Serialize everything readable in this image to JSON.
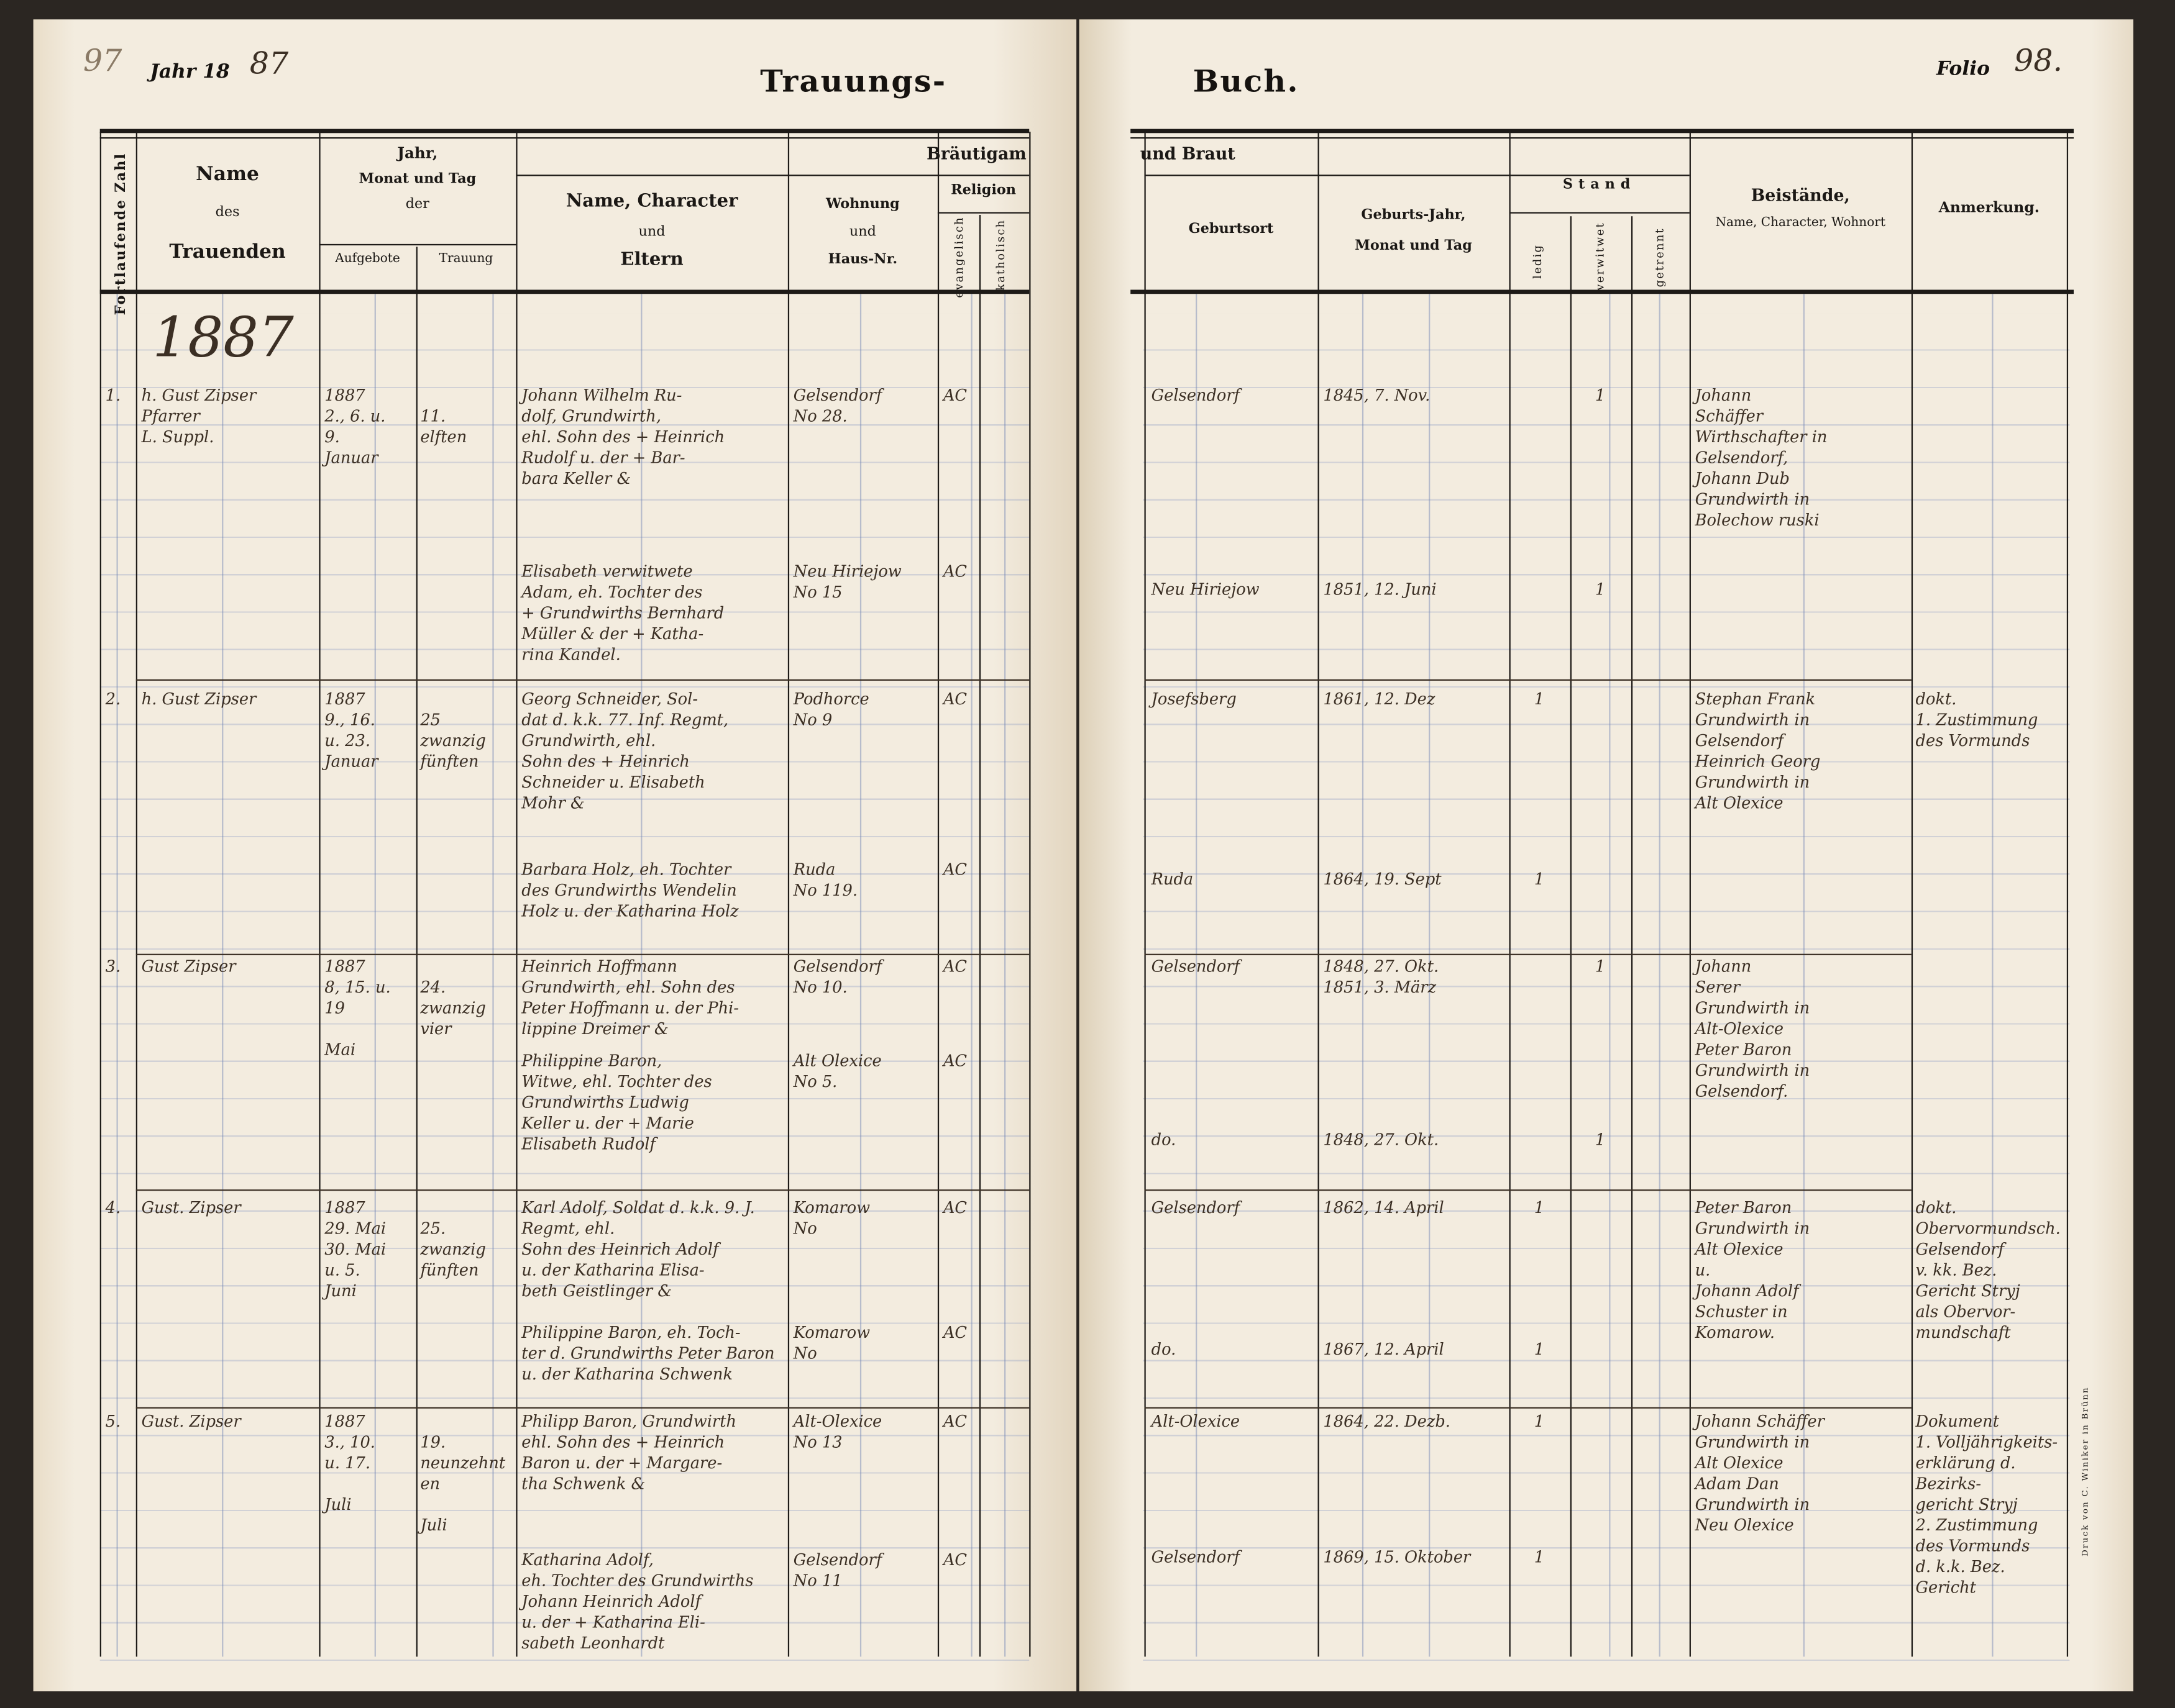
{
  "header": {
    "margin_note": "97",
    "year_label": "Jahr 18",
    "year_handwritten": "87",
    "title_left": "Trauungs-",
    "title_right": "Buch.",
    "folio_label": "Folio",
    "folio_number": "98.",
    "printer": "Druck von C. Winiker in Brünn"
  },
  "columns": {
    "number": "Fortlaufende Zahl",
    "name_top": "Name",
    "name_mid": "des",
    "name_bottom": "Trauenden",
    "date_top": "Jahr,",
    "date_mid": "Monat und Tag",
    "date_der": "der",
    "banns": "Aufgebote",
    "wedding": "Trauung",
    "groom_section": "Bräutigam",
    "bride_section": "und Braut",
    "person_top": "Name, Character",
    "person_mid": "und",
    "person_bottom": "Eltern",
    "residence_top": "Wohnung",
    "residence_mid": "und",
    "residence_bottom": "Haus-Nr.",
    "religion": "Religion",
    "evangelical": "evangelisch",
    "catholic": "katholisch",
    "birthplace": "Geburtsort",
    "birth_top": "Geburts-Jahr,",
    "birth_bottom": "Monat und Tag",
    "status": "Stand",
    "single": "ledig",
    "widowed": "verwitwet",
    "separated": "getrennt",
    "witnesses_top": "Beistände,",
    "witnesses_bottom": "Name, Character, Wohnort",
    "remarks": "Anmerkung."
  },
  "year_entry": "1887",
  "entries": [
    {
      "number": "1.",
      "officiant": "h. Gust Zipser\nPfarrer\nL. Suppl.",
      "banns": "1887\n2., 6. u.\n9.\nJanuar",
      "wedding": "\n11.\nelften",
      "groom": "Johann Wilhelm Ru-\ndolf, Grundwirth,\nehl. Sohn des + Heinrich\nRudolf u. der + Bar-\nbara Keller &",
      "bride": "Elisabeth verwitwete\nAdam, eh. Tochter des\n+ Grundwirths Bernhard\nMüller & der + Katha-\nrina Kandel.",
      "groom_residence": "Gelsendorf\nNo 28.",
      "bride_residence": "Neu Hiriejow\nNo 15",
      "groom_religion": "AC",
      "bride_religion": "AC",
      "groom_birthplace": "Gelsendorf",
      "groom_birth": "1845, 7. Nov.",
      "groom_status": {
        "single": "",
        "widowed": "1",
        "separated": ""
      },
      "bride_birthplace": "Neu Hiriejow",
      "bride_birth": "1851, 12. Juni",
      "bride_status": {
        "single": "",
        "widowed": "1",
        "separated": ""
      },
      "witnesses": "Johann\nSchäffer\nWirthschafter in\nGelsendorf,\nJohann Dub\nGrundwirth in\nBolechow ruski",
      "remarks": ""
    },
    {
      "number": "2.",
      "officiant": "h. Gust Zipser",
      "banns": "1887\n9., 16.\nu. 23.\nJanuar",
      "wedding": "\n25\nzwanzig\nfünften",
      "groom": "Georg Schneider, Sol-\ndat d. k.k. 77. Inf. Regmt,\nGrundwirth, ehl.\nSohn des + Heinrich\nSchneider u. Elisabeth\nMohr &",
      "bride": "Barbara Holz, eh. Tochter\ndes Grundwirths Wendelin\nHolz u. der Katharina Holz",
      "groom_residence": "Podhorce\nNo 9",
      "bride_residence": "Ruda\nNo 119.",
      "groom_religion": "AC",
      "bride_religion": "AC",
      "groom_birthplace": "Josefsberg",
      "groom_birth": "1861, 12. Dez",
      "groom_status": {
        "single": "1",
        "widowed": "",
        "separated": ""
      },
      "bride_birthplace": "Ruda",
      "bride_birth": "1864, 19. Sept",
      "bride_status": {
        "single": "1",
        "widowed": "",
        "separated": ""
      },
      "witnesses": "Stephan Frank\nGrundwirth in\nGelsendorf\nHeinrich Georg\nGrundwirth in\nAlt Olexice",
      "remarks": "dokt.\n1. Zustimmung\ndes Vormunds"
    },
    {
      "number": "3.",
      "officiant": "Gust Zipser",
      "banns": "1887\n8, 15. u.\n19\n\nMai",
      "wedding": "\n24.\nzwanzig\nvier",
      "groom": "Heinrich Hoffmann\nGrundwirth, ehl. Sohn des\nPeter Hoffmann u. der Phi-\nlippine Dreimer &",
      "bride": "Philippine Baron,\nWitwe, ehl. Tochter des\nGrundwirths Ludwig\nKeller u. der + Marie\nElisabeth Rudolf",
      "groom_residence": "Gelsendorf\nNo 10.",
      "bride_residence": "Alt Olexice\nNo 5.",
      "groom_religion": "AC",
      "bride_religion": "AC",
      "groom_birthplace": "Gelsendorf",
      "groom_birth": "1848, 27. Okt.\n1851, 3. März",
      "groom_status": {
        "single": "",
        "widowed": "1",
        "separated": ""
      },
      "bride_birthplace": "do.",
      "bride_birth": "1848, 27. Okt.",
      "bride_status": {
        "single": "",
        "widowed": "1",
        "separated": ""
      },
      "witnesses": "Johann\nSerer\nGrundwirth in\nAlt-Olexice\nPeter Baron\nGrundwirth in\nGelsendorf.",
      "remarks": ""
    },
    {
      "number": "4.",
      "officiant": "Gust. Zipser",
      "banns": "1887\n29. Mai\n30. Mai\nu. 5.\nJuni",
      "wedding": "\n25.\nzwanzig\nfünften",
      "groom": "Karl Adolf, Soldat d. k.k. 9. J. Regmt, ehl.\nSohn des Heinrich Adolf\nu. der Katharina Elisa-\nbeth Geistlinger &",
      "bride": "Philippine Baron, eh. Toch-\nter d. Grundwirths Peter Baron\nu. der Katharina Schwenk",
      "groom_residence": "Komarow\nNo",
      "bride_residence": "Komarow\nNo",
      "groom_religion": "AC",
      "bride_religion": "AC",
      "groom_birthplace": "Gelsendorf",
      "groom_birth": "1862, 14. April",
      "groom_status": {
        "single": "1",
        "widowed": "",
        "separated": ""
      },
      "bride_birthplace": "do.",
      "bride_birth": "1867, 12. April",
      "bride_status": {
        "single": "1",
        "widowed": "",
        "separated": ""
      },
      "witnesses": "Peter Baron\nGrundwirth in\nAlt Olexice\nu.\nJohann Adolf\nSchuster in\nKomarow.",
      "remarks": "dokt.\nObervormundsch.\nGelsendorf\nv. kk. Bez.\nGericht Stryj\nals Obervor-\nmundschaft"
    },
    {
      "number": "5.",
      "officiant": "Gust. Zipser",
      "banns": "1887\n3., 10.\nu. 17.\n\nJuli",
      "wedding": "\n19.\nneunzehnten\n\nJuli",
      "groom": "Philipp Baron, Grundwirth\nehl. Sohn des + Heinrich\nBaron u. der + Margare-\ntha Schwenk &",
      "bride": "Katharina Adolf,\neh. Tochter des Grundwirths\nJohann Heinrich Adolf\nu. der + Katharina Eli-\nsabeth Leonhardt",
      "groom_residence": "Alt-Olexice\nNo 13",
      "bride_residence": "Gelsendorf\nNo 11",
      "groom_religion": "AC",
      "bride_religion": "AC",
      "groom_birthplace": "Alt-Olexice",
      "groom_birth": "1864, 22. Dezb.",
      "groom_status": {
        "single": "1",
        "widowed": "",
        "separated": ""
      },
      "bride_birthplace": "Gelsendorf",
      "bride_birth": "1869, 15. Oktober",
      "bride_status": {
        "single": "1",
        "widowed": "",
        "separated": ""
      },
      "witnesses": "Johann Schäffer\nGrundwirth in\nAlt Olexice\nAdam Dan\nGrundwirth in\nNeu Olexice",
      "remarks": "Dokument\n1. Volljährigkeits-\nerklärung d. Bezirks-\ngericht Stryj\n2. Zustimmung\ndes Vormunds\nd. k.k. Bez. Gericht"
    }
  ]
}
